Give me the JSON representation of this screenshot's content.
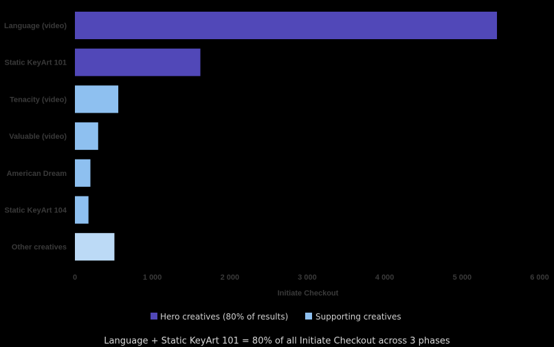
{
  "chart_data": {
    "type": "bar",
    "orientation": "horizontal",
    "categories": [
      "Language (video)",
      "Static KeyArt 101",
      "Tenacity (video)",
      "Valuable (video)",
      "American Dream",
      "Static KeyArt 104",
      "Other creatives"
    ],
    "values": [
      5450,
      1620,
      560,
      300,
      200,
      175,
      510
    ],
    "groups": [
      "hero",
      "hero",
      "supporting",
      "supporting",
      "supporting",
      "supporting",
      "other"
    ],
    "xlabel": "Initiate Checkout",
    "ylabel": "",
    "xlim": [
      0,
      6000
    ],
    "xticks": [
      0,
      1000,
      2000,
      3000,
      4000,
      5000,
      6000
    ],
    "xtick_labels": [
      "0",
      "1 000",
      "2 000",
      "3 000",
      "4 000",
      "5 000",
      "6 000"
    ],
    "legend": [
      {
        "name": "Hero creatives (80% of results)",
        "color": "#5148b8"
      },
      {
        "name": "Supporting creatives",
        "color": "#8ec0f0"
      }
    ],
    "legend_placement": "bottom",
    "grid": false,
    "colors": {
      "hero": "#5148b8",
      "supporting": "#8ec0f0",
      "other": "#bcdaf6"
    }
  },
  "caption": "Language + Static KeyArt 101 = 80% of all Initiate Checkout across 3 phases"
}
